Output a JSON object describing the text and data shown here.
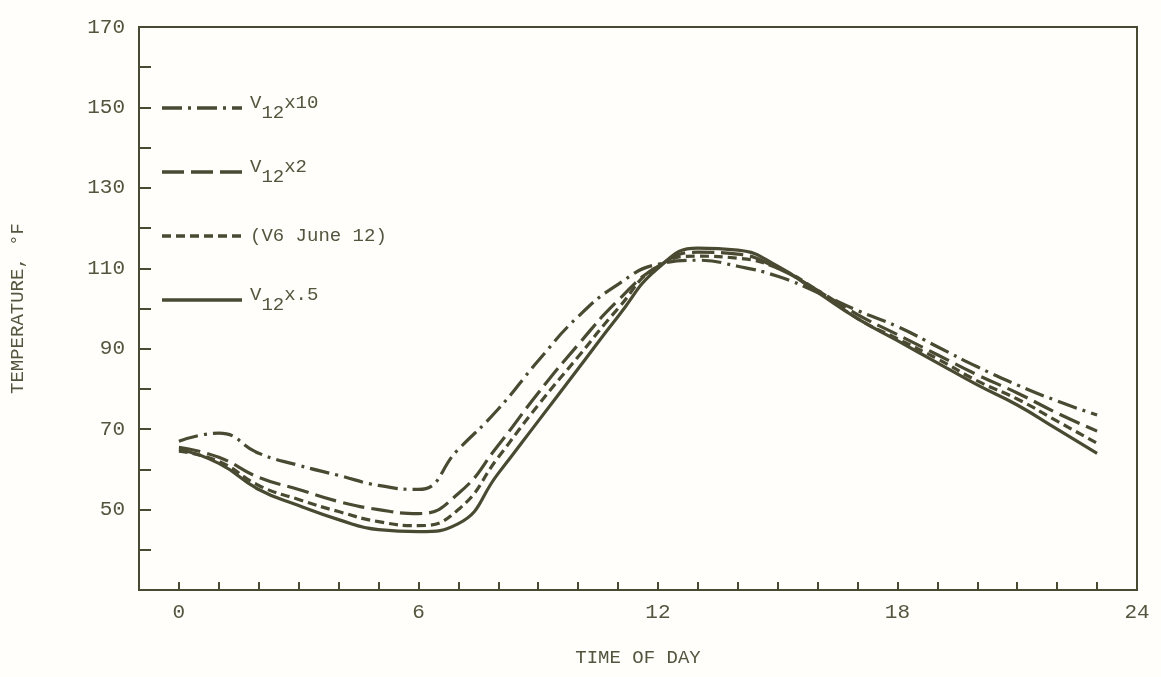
{
  "chart_data": {
    "type": "line",
    "xlabel": "TIME OF DAY",
    "ylabel": "TEMPERATURE, °F",
    "x": [
      0,
      1,
      2,
      3,
      4,
      5,
      6,
      7,
      8,
      9,
      10,
      11,
      12,
      13,
      14,
      15,
      16,
      17,
      18,
      19,
      20,
      21,
      22,
      23
    ],
    "series": [
      {
        "name": "V$_{12}$x10",
        "color": "#4a4a32",
        "line_style": "dashdot",
        "values": [
          67,
          69,
          64,
          61,
          58.5,
          56,
          55,
          65,
          75,
          87,
          98,
          106,
          111,
          112,
          110.5,
          108,
          104,
          99.5,
          95.5,
          90.5,
          85.5,
          81,
          77,
          73.5
        ]
      },
      {
        "name": "V$_{12}$x2",
        "color": "#4a4a32",
        "line_style": "longdash",
        "values": [
          65.5,
          63,
          58,
          55,
          52,
          50,
          49,
          54,
          66,
          79,
          91,
          102,
          110.5,
          114,
          113.5,
          110,
          104.5,
          98.5,
          93.5,
          88.5,
          83.5,
          79,
          74,
          69.5
        ]
      },
      {
        "name": "(V6 June 12)",
        "color": "#4a4a32",
        "line_style": "dashed",
        "values": [
          64.5,
          62,
          56,
          52.5,
          49.5,
          47,
          46,
          50,
          63,
          76,
          88,
          100,
          110.5,
          113,
          112.5,
          110,
          104.5,
          97.5,
          92.5,
          87.5,
          82,
          77.5,
          72,
          66.5
        ]
      },
      {
        "name": "V$_{12}$x.5",
        "color": "#4a4a32",
        "line_style": "solid",
        "values": [
          65,
          61.5,
          55,
          51,
          47.5,
          45,
          44.5,
          46.5,
          59,
          72,
          85,
          98,
          110,
          115,
          114.5,
          110.5,
          104,
          97.5,
          92,
          86.5,
          81,
          76,
          70,
          64
        ]
      }
    ],
    "xlim": [
      -1,
      24
    ],
    "xticks": [
      0,
      {
        "value": 1,
        "label": null
      },
      {
        "value": 2,
        "label": null
      },
      {
        "value": 3,
        "label": null
      },
      {
        "value": 4,
        "label": null
      },
      {
        "value": 5,
        "label": null
      },
      6,
      {
        "value": 7,
        "label": null
      },
      {
        "value": 8,
        "label": null
      },
      {
        "value": 9,
        "label": null
      },
      {
        "value": 10,
        "label": null
      },
      {
        "value": 11,
        "label": null
      },
      12,
      {
        "value": 13,
        "label": null
      },
      {
        "value": 14,
        "label": null
      },
      {
        "value": 15,
        "label": null
      },
      {
        "value": 16,
        "label": null
      },
      {
        "value": 17,
        "label": null
      },
      18,
      {
        "value": 19,
        "label": null
      },
      {
        "value": 20,
        "label": null
      },
      {
        "value": 21,
        "label": null
      },
      {
        "value": 22,
        "label": null
      },
      {
        "value": 23,
        "label": null
      },
      24
    ],
    "ylim": [
      30,
      170
    ],
    "yticks": [
      {
        "value": 40,
        "label": null
      },
      50,
      {
        "value": 60,
        "label": null
      },
      70,
      {
        "value": 80,
        "label": null
      },
      90,
      {
        "value": 100,
        "label": null
      },
      110,
      {
        "value": 120,
        "label": null
      },
      130,
      {
        "value": 140,
        "label": null
      },
      150,
      {
        "value": 160,
        "label": null
      },
      170
    ],
    "grid": false,
    "legend": "top left",
    "marker": "none"
  }
}
